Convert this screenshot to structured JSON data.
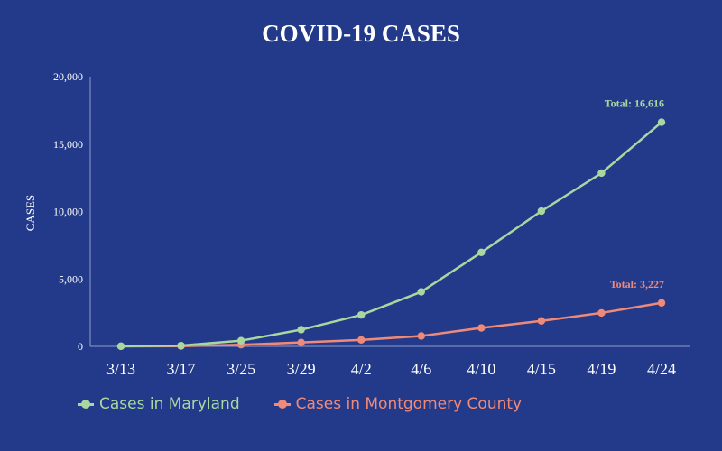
{
  "colors": {
    "background": "#233a8b",
    "axis": "#8f9cc9",
    "maryland": "#a8d8a0",
    "montgomery": "#f08a78",
    "text": "#ffffff"
  },
  "chart_data": {
    "type": "line",
    "title": "COVID-19 CASES",
    "xlabel": "",
    "ylabel": "CASES",
    "categories": [
      "3/13",
      "3/17",
      "3/25",
      "3/29",
      "4/2",
      "4/6",
      "4/10",
      "4/15",
      "4/19",
      "4/24"
    ],
    "ylim": [
      0,
      20000
    ],
    "yticks": [
      0,
      5000,
      10000,
      15000,
      20000
    ],
    "ytick_labels": [
      "0",
      "5,000",
      "10,000",
      "15,000",
      "20,000"
    ],
    "grid": false,
    "legend_position": "bottom-left",
    "series": [
      {
        "name": "Cases in Maryland",
        "color": "#a8d8a0",
        "values": [
          12,
          57,
          423,
          1239,
          2331,
          4045,
          6968,
          10032,
          12847,
          16616
        ],
        "annotation": "Total: 16,616"
      },
      {
        "name": "Cases in Montgomery County",
        "color": "#f08a78",
        "values": [
          4,
          20,
          120,
          290,
          480,
          770,
          1370,
          1890,
          2480,
          3227
        ],
        "annotation": "Total: 3,227"
      }
    ]
  }
}
